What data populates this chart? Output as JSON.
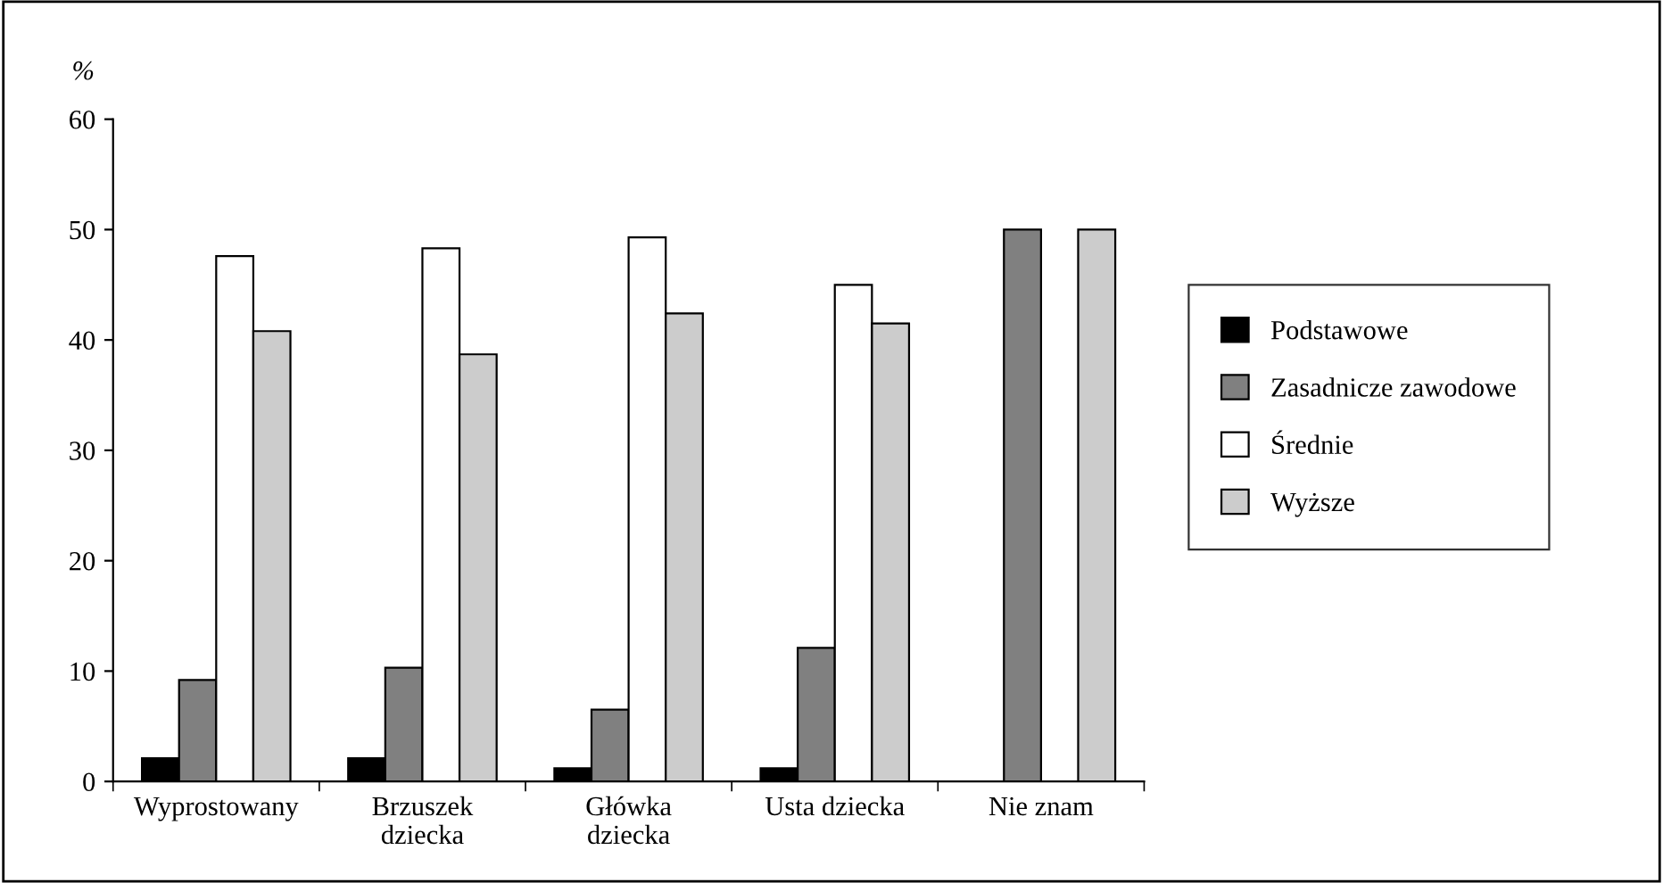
{
  "chart_data": {
    "type": "bar",
    "ylabel": "%",
    "categories": [
      "Wyprostowany",
      "Brzuszek\ndziecka",
      "Główka\ndziecka",
      "Usta dziecka",
      "Nie znam"
    ],
    "series": [
      {
        "name": "Podstawowe",
        "color": "#000000",
        "values": [
          2.1,
          2.1,
          1.2,
          1.2,
          null
        ]
      },
      {
        "name": "Zasadnicze zawodowe",
        "color": "#808080",
        "values": [
          9.2,
          10.3,
          6.5,
          12.1,
          50
        ]
      },
      {
        "name": "Średnie",
        "color": "#ffffff",
        "values": [
          47.6,
          48.3,
          49.3,
          45.0,
          null
        ]
      },
      {
        "name": "Wyższe",
        "color": "#cccccc",
        "values": [
          40.8,
          38.7,
          42.4,
          41.5,
          50
        ]
      }
    ],
    "ylim": [
      0,
      60
    ],
    "yticks": [
      0,
      10,
      20,
      30,
      40,
      50,
      60
    ],
    "grid": false,
    "legend": "right"
  }
}
